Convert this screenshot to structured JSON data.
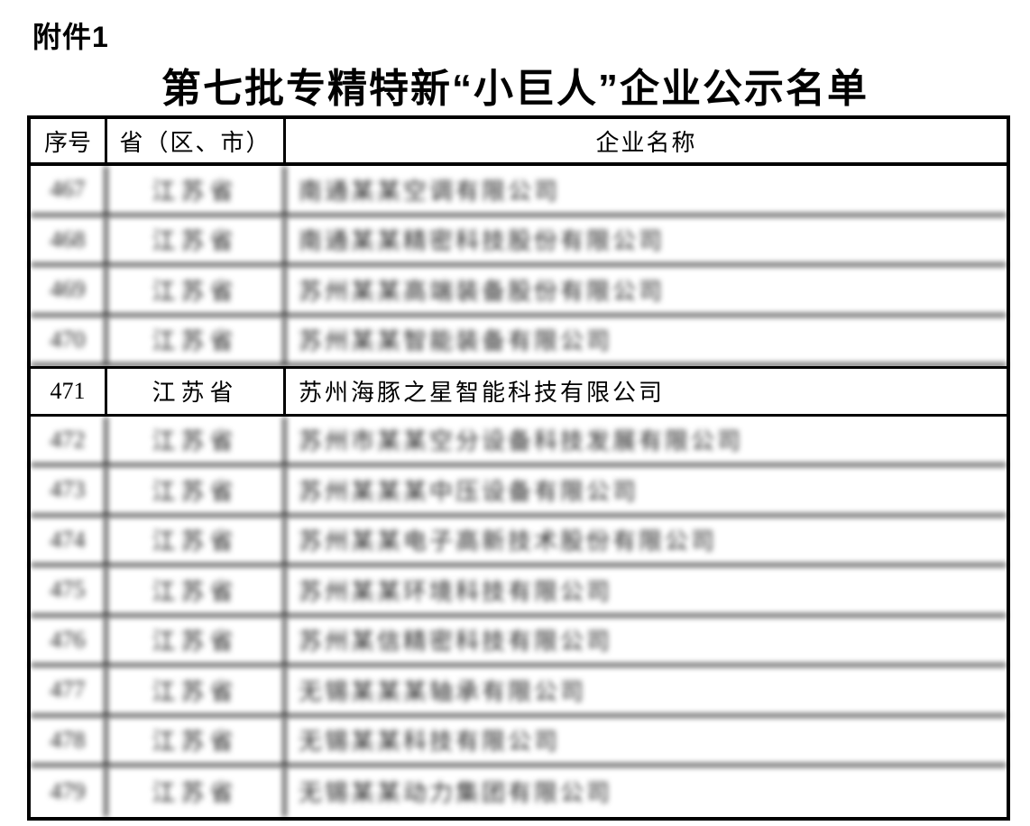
{
  "page": {
    "attachment_label": "附件1",
    "title": "第七批专精特新“小巨人”企业公示名单"
  },
  "table": {
    "columns": [
      "序号",
      "省（区、市）",
      "企业名称"
    ],
    "redaction_note": "All rows except 471 are blurred/unreadable in the source image; company strings for redacted rows are length-matched placeholders.",
    "rows": [
      {
        "no": "467",
        "province": "江苏省",
        "company": "南通某某空调有限公司",
        "redacted": true
      },
      {
        "no": "468",
        "province": "江苏省",
        "company": "南通某某精密科技股份有限公司",
        "redacted": true
      },
      {
        "no": "469",
        "province": "江苏省",
        "company": "苏州某某高端装备股份有限公司",
        "redacted": true
      },
      {
        "no": "470",
        "province": "江苏省",
        "company": "苏州某某智能装备有限公司",
        "redacted": true
      },
      {
        "no": "471",
        "province": "江苏省",
        "company": "苏州海豚之星智能科技有限公司",
        "redacted": false
      },
      {
        "no": "472",
        "province": "江苏省",
        "company": "苏州市某某空分设备科技发展有限公司",
        "redacted": true
      },
      {
        "no": "473",
        "province": "江苏省",
        "company": "苏州某某某中压设备有限公司",
        "redacted": true
      },
      {
        "no": "474",
        "province": "江苏省",
        "company": "苏州某某电子高新技术股份有限公司",
        "redacted": true
      },
      {
        "no": "475",
        "province": "江苏省",
        "company": "苏州某某环境科技有限公司",
        "redacted": true
      },
      {
        "no": "476",
        "province": "江苏省",
        "company": "苏州某信精密科技有限公司",
        "redacted": true
      },
      {
        "no": "477",
        "province": "江苏省",
        "company": "无锡某某某轴承有限公司",
        "redacted": true
      },
      {
        "no": "478",
        "province": "江苏省",
        "company": "无锡某某科技有限公司",
        "redacted": true
      },
      {
        "no": "479",
        "province": "江苏省",
        "company": "无锡某某动力集团有限公司",
        "redacted": true
      }
    ]
  }
}
